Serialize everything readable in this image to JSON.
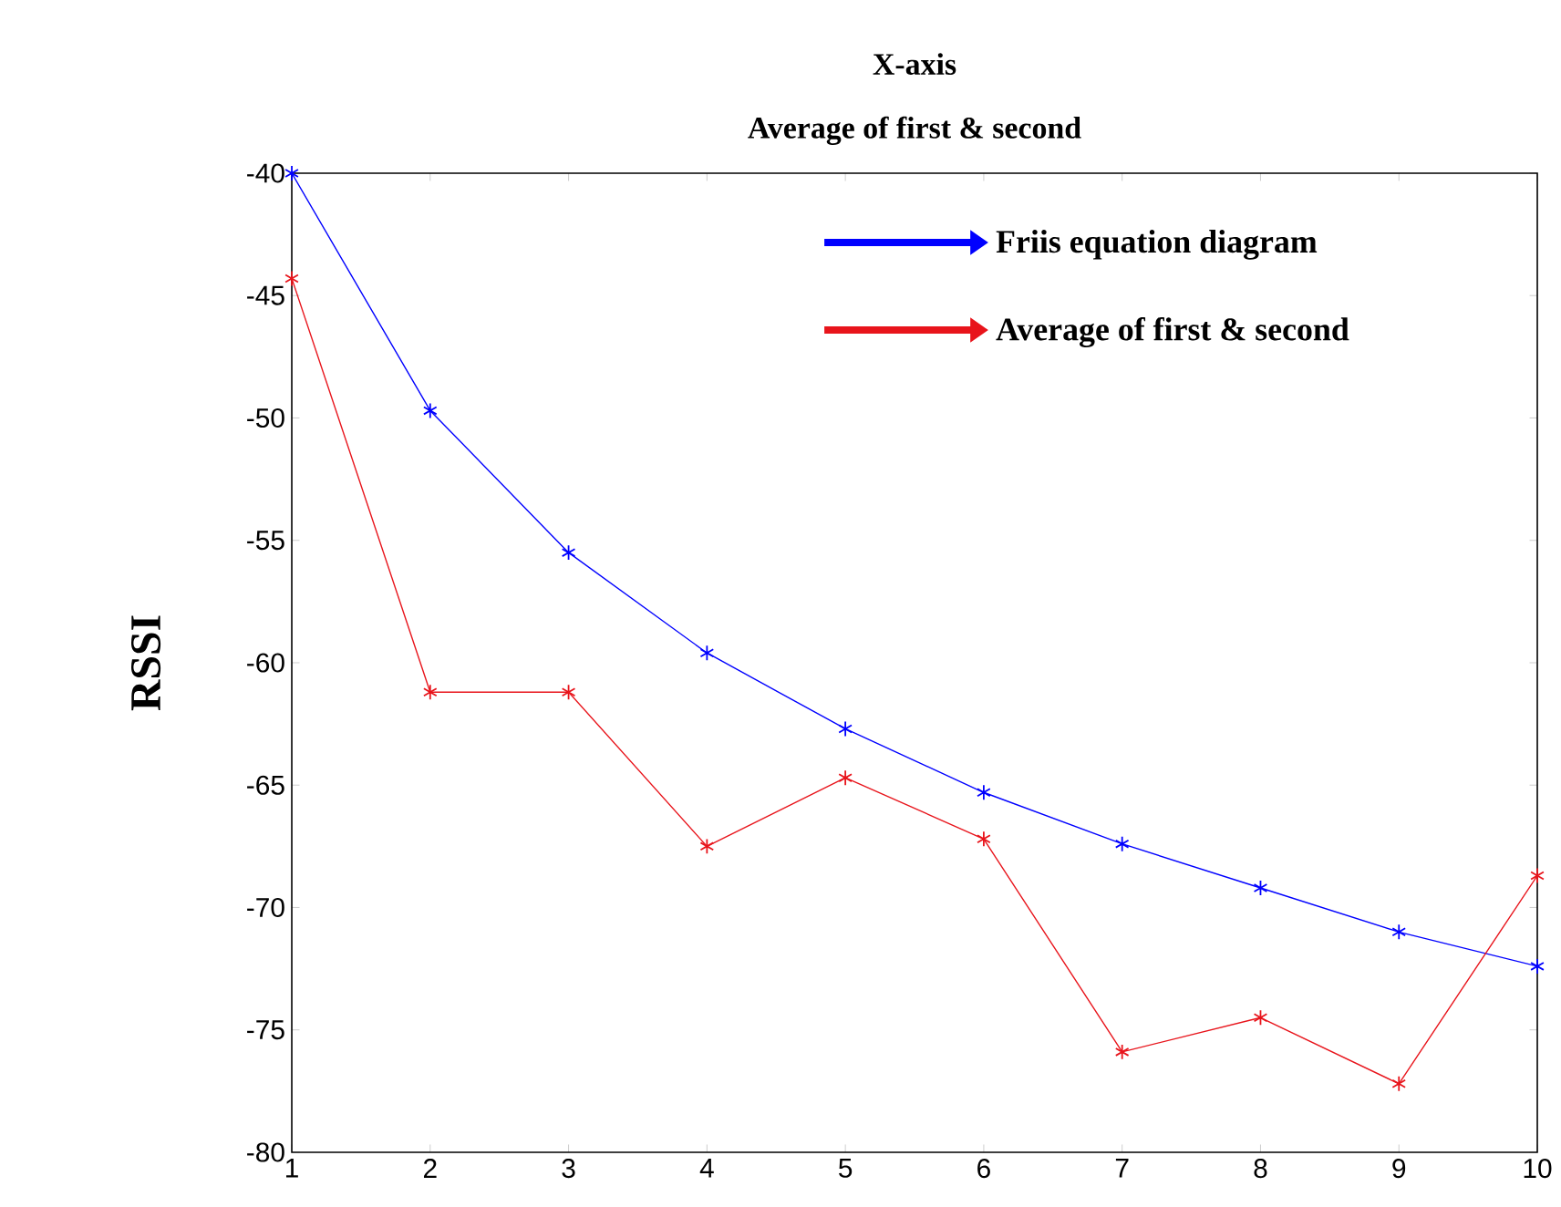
{
  "chart_data": {
    "type": "line",
    "title": "X-axis",
    "subtitle": "Average of first & second",
    "ylabel": "RSSI",
    "x": [
      1,
      2,
      3,
      4,
      5,
      6,
      7,
      8,
      9,
      10
    ],
    "xlim": [
      1,
      10
    ],
    "xticks": [
      1,
      2,
      3,
      4,
      5,
      6,
      7,
      8,
      9,
      10
    ],
    "ylim": [
      -80,
      -40
    ],
    "yticks": [
      -80,
      -75,
      -70,
      -65,
      -60,
      -55,
      -50,
      -45,
      -40
    ],
    "marker": "cross",
    "line_style": "solid",
    "grid": false,
    "legend": "top right",
    "series": [
      {
        "name": "Friis equation diagram",
        "color": "#0000ff",
        "values": [
          -40,
          -49.7,
          -55.5,
          -59.6,
          -62.7,
          -65.3,
          -67.4,
          -69.2,
          -71.0,
          -72.4
        ]
      },
      {
        "name": "Average of first & second",
        "color": "#e8141b",
        "values": [
          -44.3,
          -61.2,
          -61.2,
          -67.5,
          -64.7,
          -67.2,
          -75.9,
          -74.5,
          -77.2,
          -68.7
        ]
      }
    ]
  }
}
